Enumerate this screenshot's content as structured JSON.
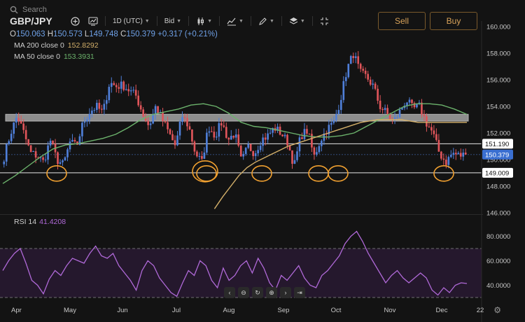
{
  "search": {
    "placeholder": "Search",
    "icon": "search-icon"
  },
  "symbol": "GBP/JPY",
  "toolbar": {
    "interval": "1D (UTC)",
    "price_type": "Bid",
    "icons": [
      "add-icon",
      "compare-icon",
      "candle-type-icon",
      "indicators-icon",
      "drawing-icon",
      "layers-icon",
      "fullscreen-icon"
    ]
  },
  "trade": {
    "sell": "Sell",
    "buy": "Buy"
  },
  "ohlc": {
    "o_label": "O",
    "o": "150.063",
    "h_label": "H",
    "h": "150.573",
    "l_label": "L",
    "l": "149.748",
    "c_label": "C",
    "c": "150.379",
    "change": "+0.317 (+0.21%)"
  },
  "ma200": {
    "label": "MA 200 close 0",
    "value": "152.8292",
    "color": "#d4b06a"
  },
  "ma50": {
    "label": "MA 50 close 0",
    "value": "153.3931",
    "color": "#6cb36c"
  },
  "rsi": {
    "label": "RSI 14",
    "value": "41.4208",
    "color": "#b069d8"
  },
  "colors": {
    "up": "#4f7fd9",
    "down": "#e0555a",
    "support": "#f0a030",
    "resistance_band": "#9a9a9a"
  },
  "price_boxes": [
    {
      "label": "151.190",
      "value": 151.19,
      "style": "line"
    },
    {
      "label": "150.379",
      "value": 150.379,
      "style": "current"
    },
    {
      "label": "149.009",
      "value": 149.009,
      "style": "line"
    }
  ],
  "nav_icons": [
    "chevron-left-icon",
    "zoom-out-icon",
    "reset-icon",
    "zoom-in-icon",
    "chevron-right-icon",
    "go-to-end-icon"
  ],
  "chart_data": [
    {
      "type": "candlestick",
      "x_labels": [
        "Apr",
        "May",
        "Jun",
        "Jul",
        "Aug",
        "Sep",
        "Oct",
        "Nov",
        "Dec",
        "22"
      ],
      "y_ticks": [
        "160.000",
        "158.000",
        "156.000",
        "154.000",
        "152.000",
        "150.000",
        "148.000",
        "146.000"
      ],
      "ylim": [
        146,
        160
      ],
      "close_path": [
        150.2,
        152.0,
        153.3,
        152.0,
        150.5,
        150.3,
        149.8,
        151.5,
        150.0,
        149.6,
        151.3,
        151.0,
        152.8,
        153.6,
        154.0,
        153.5,
        155.8,
        155.5,
        155.6,
        155.2,
        154.8,
        153.5,
        152.5,
        154.0,
        153.0,
        152.0,
        151.0,
        153.3,
        152.5,
        150.5,
        149.8,
        152.5,
        151.8,
        152.8,
        151.5,
        152.0,
        149.8,
        151.0,
        150.5,
        151.5,
        151.8,
        152.4,
        152.0,
        151.3,
        149.5,
        151.8,
        152.2,
        150.2,
        151.5,
        152.3,
        152.8,
        154.5,
        156.8,
        158.0,
        156.5,
        156.2,
        155.5,
        154.0,
        153.5,
        152.8,
        153.6,
        154.5,
        153.8,
        154.0,
        152.8,
        152.0,
        150.5,
        149.8,
        150.5,
        150.3,
        150.379
      ],
      "ma200_path": [
        null,
        null,
        null,
        null,
        null,
        null,
        null,
        null,
        null,
        null,
        null,
        null,
        null,
        null,
        null,
        null,
        null,
        null,
        null,
        null,
        null,
        null,
        null,
        null,
        null,
        null,
        146.3,
        147.2,
        148.0,
        148.8,
        149.4,
        149.8,
        150.1,
        150.4,
        150.7,
        151.0,
        151.2,
        151.4,
        151.6,
        151.8,
        152.0,
        152.2,
        152.4,
        152.6,
        152.8,
        152.9,
        153.0,
        153.0,
        153.0,
        153.0,
        152.9,
        152.8,
        152.8,
        152.8,
        152.8,
        152.8,
        152.8,
        152.8
      ],
      "ma50_path": [
        148.2,
        148.8,
        149.5,
        150.2,
        150.8,
        151.1,
        151.2,
        151.4,
        151.6,
        151.9,
        152.4,
        153.0,
        153.4,
        153.6,
        153.8,
        154.1,
        154.2,
        154.0,
        153.5,
        152.8,
        152.5,
        152.4,
        152.2,
        152.0,
        151.8,
        151.7,
        151.7,
        151.8,
        152.0,
        152.5,
        153.0,
        153.5,
        154.0,
        154.2,
        154.2,
        154.1,
        153.8,
        153.4
      ],
      "resistance_zone": [
        153.0,
        153.3
      ],
      "support_levels": [
        151.19,
        149.009
      ],
      "support_touches": [
        "Apr",
        "Jul",
        "Aug",
        "Sep",
        "Sep",
        "Oct",
        "Dec"
      ]
    },
    {
      "type": "line",
      "name": "RSI 14",
      "y_ticks": [
        "80.0000",
        "60.0000",
        "40.0000"
      ],
      "ylim": [
        26,
        90
      ],
      "bands": [
        70,
        30
      ],
      "values": [
        52,
        60,
        66,
        70,
        58,
        44,
        40,
        33,
        45,
        52,
        48,
        56,
        62,
        60,
        58,
        66,
        72,
        64,
        62,
        66,
        56,
        50,
        44,
        36,
        52,
        60,
        56,
        46,
        40,
        34,
        31,
        42,
        52,
        48,
        60,
        56,
        44,
        38,
        54,
        44,
        48,
        56,
        60,
        50,
        62,
        54,
        42,
        36,
        48,
        44,
        50,
        56,
        46,
        40,
        38,
        48,
        52,
        58,
        64,
        74,
        80,
        84,
        76,
        66,
        58,
        50,
        42,
        48,
        52,
        46,
        42,
        46,
        50,
        46,
        36,
        32,
        38,
        34,
        40,
        42,
        41.42
      ]
    }
  ]
}
